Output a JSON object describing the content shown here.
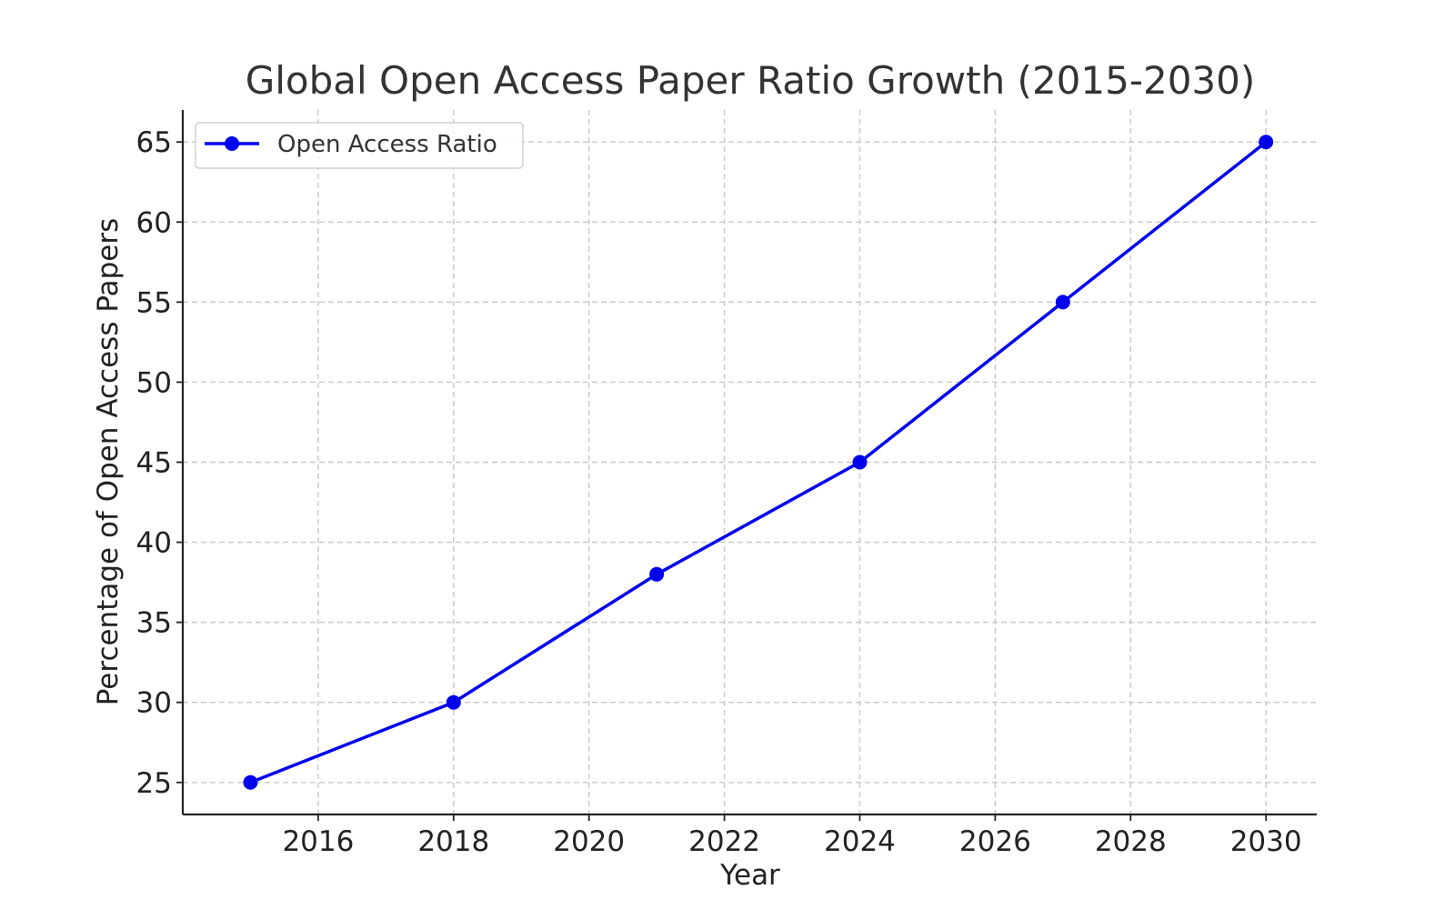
{
  "chart_data": {
    "type": "line",
    "title": "Global Open Access Paper Ratio Growth (2015-2030)",
    "xlabel": "Year",
    "ylabel": "Percentage of Open Access Papers",
    "x": [
      2015,
      2018,
      2021,
      2024,
      2027,
      2030
    ],
    "series": [
      {
        "name": "Open Access Ratio",
        "values": [
          25,
          30,
          38,
          45,
          55,
          65
        ],
        "color": "#0000ee",
        "marker": "circle"
      }
    ],
    "xlim": [
      2014.0,
      2030.75
    ],
    "ylim": [
      23.0,
      67.0
    ],
    "xticks": [
      2016,
      2018,
      2020,
      2022,
      2024,
      2026,
      2028,
      2030
    ],
    "yticks": [
      25,
      30,
      35,
      40,
      45,
      50,
      55,
      60,
      65
    ],
    "grid": true,
    "legend_position": "top-left"
  }
}
